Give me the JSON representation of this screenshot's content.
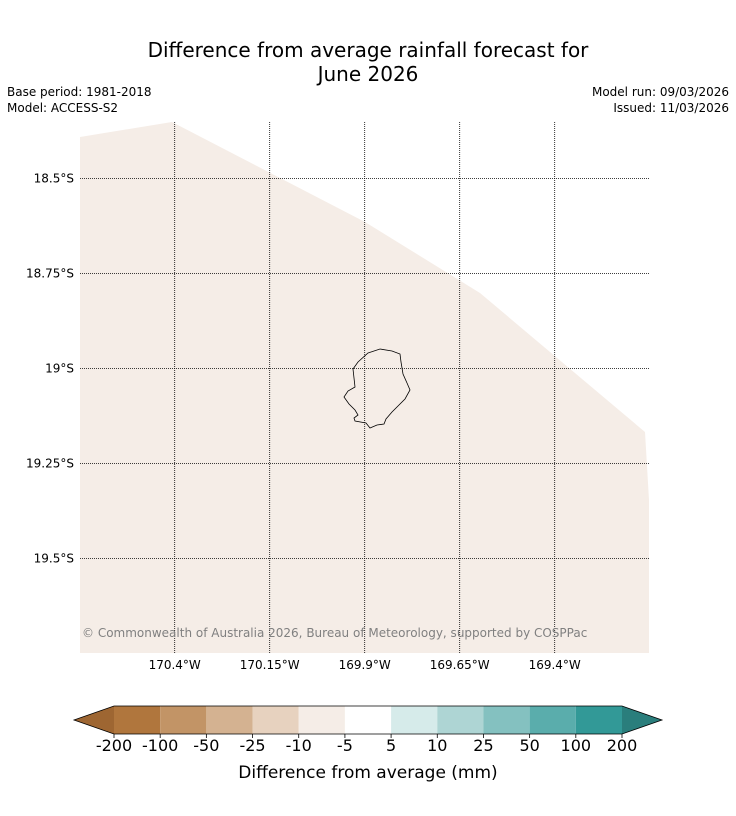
{
  "title": {
    "line1": "Difference from average rainfall forecast for",
    "line2": "June 2026"
  },
  "meta": {
    "base_period": "Base period: 1981-2018",
    "model": "Model: ACCESS-S2",
    "model_run": "Model run: 09/03/2026",
    "issued": "Issued: 11/03/2026"
  },
  "map": {
    "region": "Niue",
    "extent": {
      "lon_min": -170.65,
      "lon_max": -169.15,
      "lat_min": -19.7,
      "lat_max": -18.35
    },
    "latitudes": [
      {
        "value": -18.5,
        "label": "18.5°S"
      },
      {
        "value": -18.75,
        "label": "18.75°S"
      },
      {
        "value": -19.0,
        "label": "19°S"
      },
      {
        "value": -19.25,
        "label": "19.25°S"
      },
      {
        "value": -19.5,
        "label": "19.5°S"
      }
    ],
    "longitudes": [
      {
        "value": -170.4,
        "label": "170.4°W"
      },
      {
        "value": -170.15,
        "label": "170.15°W"
      },
      {
        "value": -169.9,
        "label": "169.9°W"
      },
      {
        "value": -169.65,
        "label": "169.65°W"
      },
      {
        "value": -169.4,
        "label": "169.4°W"
      }
    ],
    "fill_category": "-10 to -5",
    "fill_color": "#f5ede7",
    "copyright": "© Commonwealth of Australia 2026, Bureau of Meteorology, supported by COSPPac"
  },
  "colorbar": {
    "title": "Difference from average (mm)",
    "ticks": [
      "-200",
      "-100",
      "-50",
      "-25",
      "-10",
      "-5",
      "5",
      "10",
      "25",
      "50",
      "100",
      "200"
    ],
    "colors": [
      "#b0763d",
      "#c29466",
      "#d4b291",
      "#e7d2bf",
      "#f5ede7",
      "#ffffff",
      "#d6ebea",
      "#aed5d4",
      "#84c1c0",
      "#5aadac",
      "#329997"
    ],
    "under_color": "#9e6632",
    "over_color": "#2a7e7c"
  }
}
